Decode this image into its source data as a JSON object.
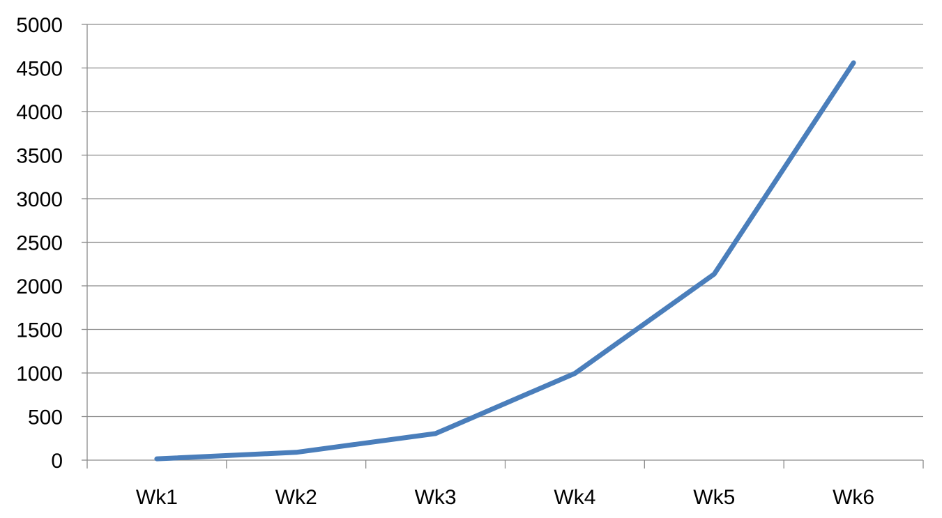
{
  "chart_data": {
    "type": "line",
    "categories": [
      "Wk1",
      "Wk2",
      "Wk3",
      "Wk4",
      "Wk5",
      "Wk6"
    ],
    "series": [
      {
        "values": [
          15,
          90,
          305,
          995,
          2135,
          4560
        ],
        "color": "#4A7EBB"
      }
    ],
    "title": "",
    "xlabel": "",
    "ylabel": "",
    "ylim": [
      0,
      5000
    ],
    "yticks": [
      "0",
      "500",
      "1000",
      "1500",
      "2000",
      "2500",
      "3000",
      "3500",
      "4000",
      "4500",
      "5000"
    ],
    "grid": true,
    "legend": "none"
  }
}
